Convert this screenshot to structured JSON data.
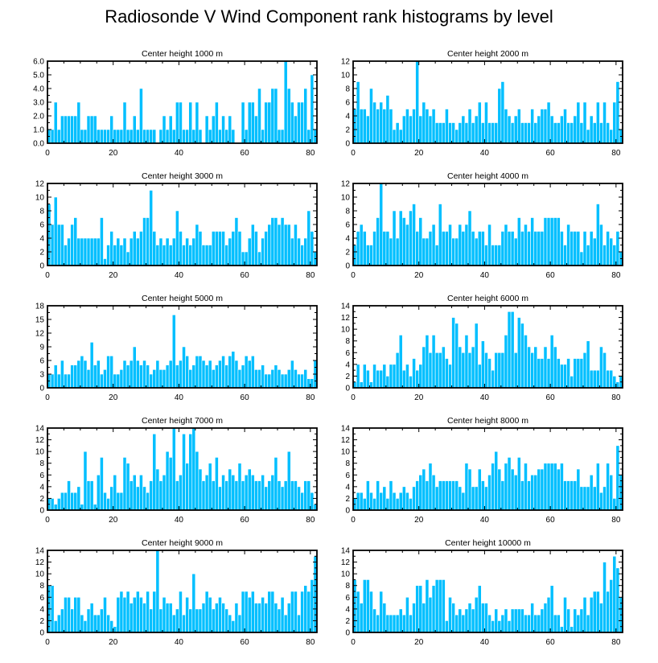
{
  "title": "Radiosonde V Wind Component rank histograms by level",
  "colors": {
    "bar": "#00bfff",
    "bar_edge": "#ffffff",
    "axis": "#000000"
  },
  "chart_data": [
    {
      "type": "bar",
      "title": "Center height 1000 m",
      "xlim": [
        0,
        82
      ],
      "ylim": [
        0,
        6
      ],
      "yticks": [
        0,
        1,
        2,
        3,
        4,
        5,
        6
      ],
      "ytick_labels": [
        "0.0",
        "1.0",
        "2.0",
        "3.0",
        "4.0",
        "5.0",
        "6.0"
      ],
      "xticks": [
        0,
        20,
        40,
        60,
        80
      ],
      "xtick_labels": [
        "0",
        "20",
        "40",
        "60",
        "80"
      ],
      "values": [
        1,
        1,
        3,
        1,
        2,
        2,
        2,
        2,
        2,
        3,
        1,
        1,
        2,
        2,
        2,
        1,
        1,
        1,
        1,
        2,
        1,
        1,
        1,
        3,
        1,
        1,
        2,
        1,
        4,
        1,
        1,
        1,
        1,
        0,
        1,
        2,
        1,
        2,
        1,
        3,
        3,
        1,
        1,
        3,
        1,
        3,
        1,
        0,
        2,
        1,
        2,
        3,
        1,
        2,
        1,
        2,
        1,
        0,
        0,
        3,
        1,
        3,
        3,
        2,
        4,
        1,
        3,
        3,
        4,
        4,
        1,
        1,
        6,
        4,
        3,
        2,
        3,
        3,
        4,
        1,
        5,
        1
      ]
    },
    {
      "type": "bar",
      "title": "Center height 2000 m",
      "xlim": [
        0,
        82
      ],
      "ylim": [
        0,
        12
      ],
      "yticks": [
        0,
        2,
        4,
        6,
        8,
        10,
        12
      ],
      "ytick_labels": [
        "0",
        "2",
        "4",
        "6",
        "8",
        "10",
        "12"
      ],
      "xticks": [
        0,
        20,
        40,
        60,
        80
      ],
      "xtick_labels": [
        "0",
        "20",
        "40",
        "60",
        "80"
      ],
      "values": [
        5,
        9,
        5,
        5,
        4,
        8,
        6,
        5,
        6,
        5,
        7,
        5,
        2,
        3,
        2,
        4,
        5,
        4,
        5,
        12,
        4,
        6,
        5,
        4,
        5,
        3,
        3,
        3,
        5,
        3,
        3,
        2,
        3,
        4,
        3,
        5,
        3,
        4,
        6,
        3,
        6,
        3,
        3,
        3,
        8,
        9,
        5,
        4,
        3,
        4,
        5,
        3,
        3,
        3,
        5,
        3,
        4,
        5,
        5,
        6,
        4,
        3,
        3,
        4,
        5,
        3,
        3,
        4,
        6,
        3,
        6,
        2,
        4,
        3,
        6,
        3,
        6,
        3,
        2,
        6,
        9,
        2
      ]
    },
    {
      "type": "bar",
      "title": "Center height 3000 m",
      "xlim": [
        0,
        82
      ],
      "ylim": [
        0,
        12
      ],
      "yticks": [
        0,
        2,
        4,
        6,
        8,
        10,
        12
      ],
      "ytick_labels": [
        "0",
        "2",
        "4",
        "6",
        "8",
        "10",
        "12"
      ],
      "xticks": [
        0,
        20,
        40,
        60,
        80
      ],
      "xtick_labels": [
        "0",
        "20",
        "40",
        "60",
        "80"
      ],
      "values": [
        9,
        6,
        10,
        6,
        6,
        3,
        4,
        6,
        7,
        4,
        4,
        4,
        4,
        4,
        4,
        4,
        7,
        1,
        3,
        5,
        3,
        4,
        3,
        4,
        2,
        4,
        5,
        4,
        5,
        7,
        7,
        11,
        5,
        3,
        4,
        3,
        4,
        3,
        4,
        8,
        5,
        3,
        4,
        3,
        4,
        6,
        5,
        3,
        3,
        3,
        5,
        5,
        5,
        5,
        3,
        4,
        5,
        7,
        5,
        2,
        2,
        4,
        6,
        5,
        2,
        4,
        5,
        6,
        7,
        7,
        6,
        7,
        6,
        6,
        4,
        6,
        4,
        3,
        4,
        8,
        5,
        2
      ]
    },
    {
      "type": "bar",
      "title": "Center height 4000 m",
      "xlim": [
        0,
        82
      ],
      "ylim": [
        0,
        12
      ],
      "yticks": [
        0,
        2,
        4,
        6,
        8,
        10,
        12
      ],
      "ytick_labels": [
        "0",
        "2",
        "4",
        "6",
        "8",
        "10",
        "12"
      ],
      "xticks": [
        0,
        20,
        40,
        60,
        80
      ],
      "xtick_labels": [
        "0",
        "20",
        "40",
        "60",
        "80"
      ],
      "values": [
        3,
        5,
        6,
        5,
        3,
        3,
        5,
        7,
        12,
        5,
        5,
        4,
        8,
        4,
        8,
        7,
        6,
        8,
        9,
        5,
        7,
        4,
        4,
        5,
        6,
        3,
        9,
        5,
        5,
        6,
        4,
        4,
        6,
        5,
        6,
        8,
        5,
        4,
        5,
        5,
        3,
        6,
        3,
        3,
        3,
        5,
        6,
        5,
        5,
        4,
        7,
        5,
        6,
        5,
        7,
        5,
        5,
        5,
        7,
        7,
        7,
        7,
        7,
        5,
        3,
        6,
        5,
        5,
        5,
        2,
        5,
        3,
        5,
        4,
        9,
        6,
        3,
        5,
        4,
        3,
        5,
        2
      ]
    },
    {
      "type": "bar",
      "title": "Center height 5000 m",
      "xlim": [
        0,
        82
      ],
      "ylim": [
        0,
        18
      ],
      "yticks": [
        0,
        3,
        6,
        9,
        12,
        15,
        18
      ],
      "ytick_labels": [
        "0",
        "3",
        "6",
        "9",
        "12",
        "15",
        "18"
      ],
      "xticks": [
        0,
        20,
        40,
        60,
        80
      ],
      "xtick_labels": [
        "0",
        "20",
        "40",
        "60",
        "80"
      ],
      "values": [
        3,
        3,
        5,
        3,
        6,
        3,
        3,
        5,
        5,
        6,
        7,
        6,
        4,
        10,
        5,
        6,
        3,
        4,
        7,
        7,
        3,
        3,
        4,
        6,
        5,
        6,
        9,
        6,
        5,
        6,
        5,
        3,
        4,
        6,
        4,
        4,
        5,
        6,
        16,
        5,
        6,
        9,
        7,
        4,
        5,
        7,
        7,
        6,
        5,
        6,
        4,
        5,
        6,
        7,
        5,
        7,
        8,
        6,
        4,
        5,
        7,
        6,
        7,
        4,
        4,
        5,
        3,
        3,
        4,
        5,
        4,
        3,
        3,
        4,
        6,
        4,
        3,
        3,
        4,
        2,
        2,
        6
      ]
    },
    {
      "type": "bar",
      "title": "Center height 6000 m",
      "xlim": [
        0,
        82
      ],
      "ylim": [
        0,
        14
      ],
      "yticks": [
        0,
        2,
        4,
        6,
        8,
        10,
        12,
        14
      ],
      "ytick_labels": [
        "0",
        "2",
        "4",
        "6",
        "8",
        "10",
        "12",
        "14"
      ],
      "xticks": [
        0,
        20,
        40,
        60,
        80
      ],
      "xtick_labels": [
        "0",
        "20",
        "40",
        "60",
        "80"
      ],
      "values": [
        1,
        4,
        1,
        4,
        3,
        1,
        4,
        3,
        3,
        4,
        2,
        4,
        4,
        6,
        9,
        3,
        4,
        2,
        5,
        3,
        4,
        7,
        9,
        6,
        9,
        6,
        6,
        7,
        5,
        4,
        12,
        11,
        7,
        6,
        9,
        6,
        7,
        11,
        4,
        8,
        6,
        5,
        3,
        6,
        6,
        6,
        9,
        13,
        13,
        6,
        12,
        11,
        9,
        7,
        6,
        7,
        5,
        5,
        7,
        5,
        9,
        7,
        5,
        4,
        4,
        5,
        2,
        5,
        5,
        5,
        6,
        8,
        3,
        3,
        3,
        7,
        6,
        3,
        3,
        2,
        1,
        2
      ]
    },
    {
      "type": "bar",
      "title": "Center height 7000 m",
      "xlim": [
        0,
        82
      ],
      "ylim": [
        0,
        14
      ],
      "yticks": [
        0,
        2,
        4,
        6,
        8,
        10,
        12,
        14
      ],
      "ytick_labels": [
        "0",
        "2",
        "4",
        "6",
        "8",
        "10",
        "12",
        "14"
      ],
      "xticks": [
        0,
        20,
        40,
        60,
        80
      ],
      "xtick_labels": [
        "0",
        "20",
        "40",
        "60",
        "80"
      ],
      "values": [
        2,
        2,
        1,
        2,
        3,
        3,
        5,
        3,
        3,
        4,
        1,
        10,
        5,
        5,
        1,
        6,
        9,
        3,
        2,
        4,
        6,
        3,
        3,
        9,
        8,
        5,
        6,
        4,
        6,
        4,
        3,
        5,
        13,
        7,
        5,
        6,
        10,
        9,
        14,
        5,
        6,
        13,
        8,
        13,
        14,
        10,
        7,
        5,
        6,
        8,
        5,
        9,
        4,
        6,
        5,
        7,
        6,
        5,
        8,
        5,
        6,
        7,
        6,
        5,
        5,
        6,
        4,
        5,
        6,
        9,
        5,
        4,
        5,
        10,
        5,
        5,
        4,
        3,
        5,
        5,
        3,
        1
      ]
    },
    {
      "type": "bar",
      "title": "Center height 8000 m",
      "xlim": [
        0,
        82
      ],
      "ylim": [
        0,
        14
      ],
      "yticks": [
        0,
        2,
        4,
        6,
        8,
        10,
        12,
        14
      ],
      "ytick_labels": [
        "0",
        "2",
        "4",
        "6",
        "8",
        "10",
        "12",
        "14"
      ],
      "xticks": [
        0,
        20,
        40,
        60,
        80
      ],
      "xtick_labels": [
        "0",
        "20",
        "40",
        "60",
        "80"
      ],
      "values": [
        2,
        3,
        3,
        2,
        5,
        3,
        2,
        5,
        3,
        4,
        2,
        5,
        3,
        2,
        3,
        4,
        3,
        2,
        4,
        5,
        6,
        7,
        5,
        8,
        6,
        4,
        5,
        5,
        5,
        5,
        5,
        5,
        4,
        3,
        8,
        7,
        4,
        4,
        7,
        5,
        4,
        6,
        8,
        10,
        7,
        5,
        8,
        9,
        7,
        6,
        9,
        5,
        8,
        5,
        6,
        6,
        7,
        7,
        8,
        8,
        8,
        8,
        7,
        8,
        5,
        5,
        5,
        5,
        7,
        4,
        4,
        4,
        6,
        4,
        8,
        3,
        4,
        8,
        6,
        2,
        11,
        6
      ]
    },
    {
      "type": "bar",
      "title": "Center height 9000 m",
      "xlim": [
        0,
        82
      ],
      "ylim": [
        0,
        14
      ],
      "yticks": [
        0,
        2,
        4,
        6,
        8,
        10,
        12,
        14
      ],
      "ytick_labels": [
        "0",
        "2",
        "4",
        "6",
        "8",
        "10",
        "12",
        "14"
      ],
      "xticks": [
        0,
        20,
        40,
        60,
        80
      ],
      "xtick_labels": [
        "0",
        "20",
        "40",
        "60",
        "80"
      ],
      "values": [
        8,
        8,
        2,
        3,
        4,
        6,
        6,
        4,
        6,
        6,
        3,
        2,
        4,
        5,
        3,
        3,
        4,
        6,
        3,
        2,
        1,
        6,
        7,
        6,
        7,
        5,
        6,
        7,
        6,
        5,
        7,
        4,
        7,
        14,
        4,
        6,
        5,
        5,
        3,
        4,
        7,
        3,
        6,
        4,
        10,
        4,
        4,
        5,
        7,
        6,
        4,
        5,
        6,
        5,
        4,
        3,
        2,
        5,
        3,
        7,
        7,
        6,
        7,
        5,
        5,
        6,
        5,
        7,
        7,
        5,
        4,
        6,
        3,
        5,
        7,
        7,
        3,
        7,
        8,
        7,
        9,
        13
      ]
    },
    {
      "type": "bar",
      "title": "Center height 10000 m",
      "xlim": [
        0,
        82
      ],
      "ylim": [
        0,
        14
      ],
      "yticks": [
        0,
        2,
        4,
        6,
        8,
        10,
        12,
        14
      ],
      "ytick_labels": [
        "0",
        "2",
        "4",
        "6",
        "8",
        "10",
        "12",
        "14"
      ],
      "xticks": [
        0,
        20,
        40,
        60,
        80
      ],
      "xtick_labels": [
        "0",
        "20",
        "40",
        "60",
        "80"
      ],
      "values": [
        9,
        7,
        5,
        9,
        9,
        7,
        4,
        3,
        7,
        5,
        3,
        3,
        3,
        3,
        4,
        3,
        6,
        3,
        5,
        8,
        8,
        5,
        9,
        6,
        8,
        9,
        9,
        9,
        2,
        6,
        5,
        3,
        4,
        3,
        4,
        5,
        4,
        6,
        8,
        5,
        5,
        3,
        2,
        4,
        2,
        3,
        4,
        2,
        4,
        4,
        4,
        4,
        3,
        3,
        5,
        3,
        3,
        4,
        5,
        6,
        8,
        3,
        3,
        1,
        6,
        4,
        1,
        4,
        3,
        4,
        6,
        3,
        6,
        7,
        7,
        5,
        12,
        7,
        9,
        13,
        11,
        6
      ]
    }
  ]
}
